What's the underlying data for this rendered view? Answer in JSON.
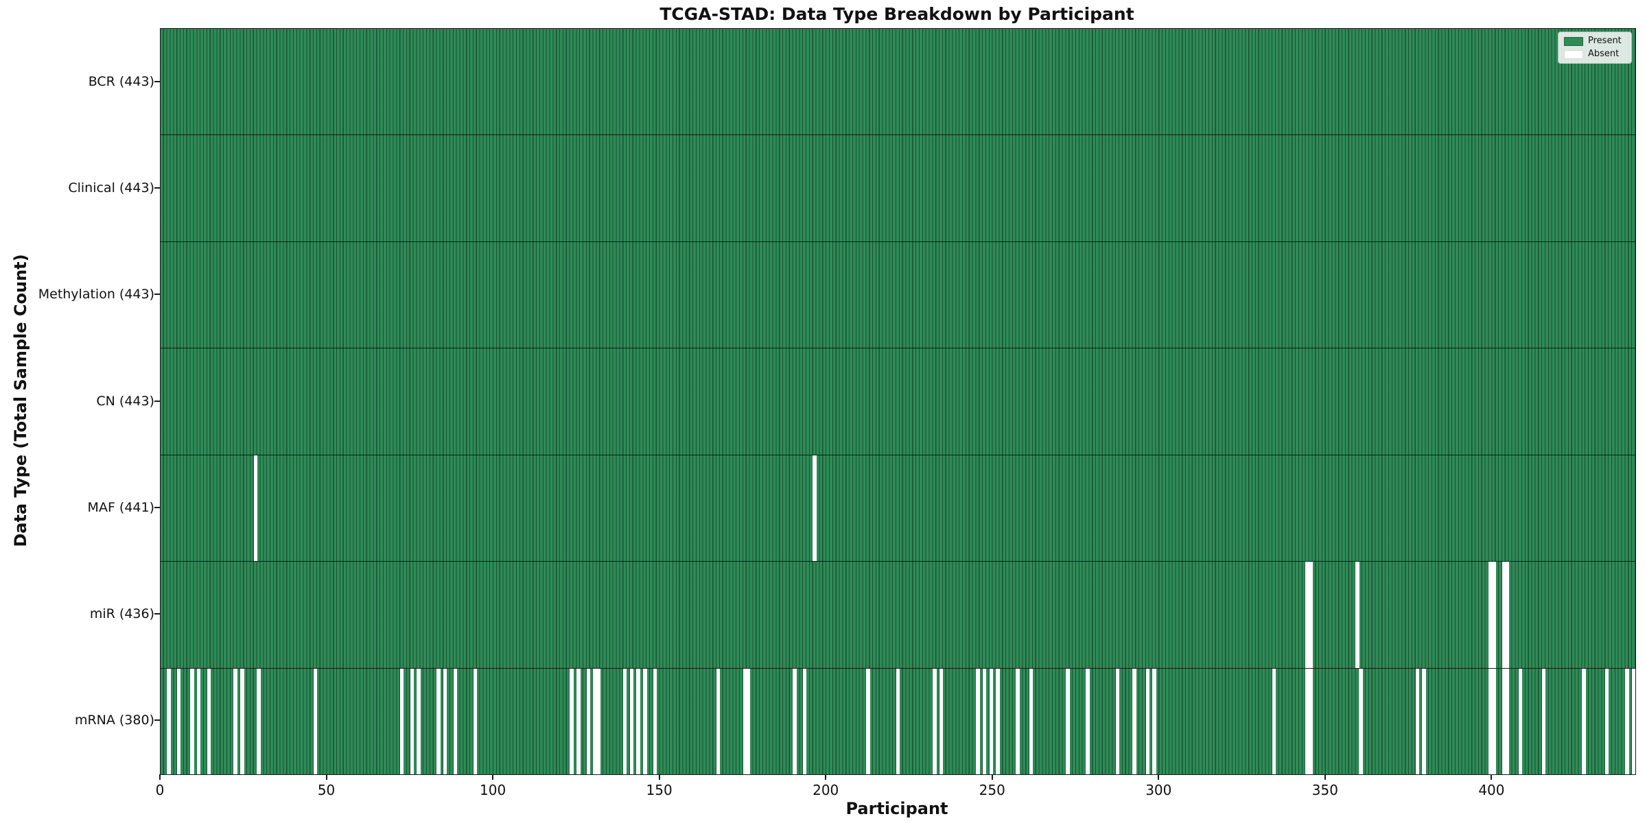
{
  "chart_data": {
    "type": "heatmap",
    "title": "TCGA-STAD: Data Type Breakdown by Participant",
    "xlabel": "Participant",
    "ylabel": "Data Type (Total Sample Count)",
    "x_ticks": [
      0,
      50,
      100,
      150,
      200,
      250,
      300,
      350,
      400
    ],
    "x_range": [
      0,
      443
    ],
    "n_participants": 443,
    "grid": false,
    "legend_position": "upper right",
    "legend": [
      {
        "label": "Present",
        "color": "#2e8b57"
      },
      {
        "label": "Absent",
        "color": "#ffffff"
      }
    ],
    "rows": [
      {
        "label": "BCR (443)",
        "name": "BCR",
        "present_count": 443,
        "absent_participants": []
      },
      {
        "label": "Clinical (443)",
        "name": "Clinical",
        "present_count": 443,
        "absent_participants": []
      },
      {
        "label": "Methylation (443)",
        "name": "Methylation",
        "present_count": 443,
        "absent_participants": []
      },
      {
        "label": "CN (443)",
        "name": "CN",
        "present_count": 443,
        "absent_participants": []
      },
      {
        "label": "MAF (441)",
        "name": "MAF",
        "present_count": 441,
        "absent_participants": [
          28,
          196
        ]
      },
      {
        "label": "miR (436)",
        "name": "miR",
        "present_count": 436,
        "absent_participants": [
          344,
          345,
          359,
          399,
          400,
          403,
          404
        ]
      },
      {
        "label": "mRNA (380)",
        "name": "mRNA",
        "present_count": 380,
        "absent_participants": [
          2,
          5,
          9,
          11,
          14,
          22,
          24,
          29,
          46,
          72,
          75,
          77,
          83,
          85,
          88,
          94,
          123,
          125,
          128,
          130,
          131,
          139,
          141,
          143,
          145,
          148,
          167,
          175,
          176,
          190,
          193,
          212,
          221,
          232,
          234,
          245,
          247,
          249,
          251,
          257,
          261,
          272,
          278,
          287,
          292,
          296,
          298,
          334,
          344,
          345,
          360,
          377,
          379,
          399,
          400,
          403,
          404,
          408,
          415,
          427,
          434,
          440,
          442
        ]
      }
    ],
    "colors": {
      "present": "#2e8b57",
      "absent": "#ffffff",
      "bar_edge": "#14331f",
      "text": "#111111"
    }
  }
}
